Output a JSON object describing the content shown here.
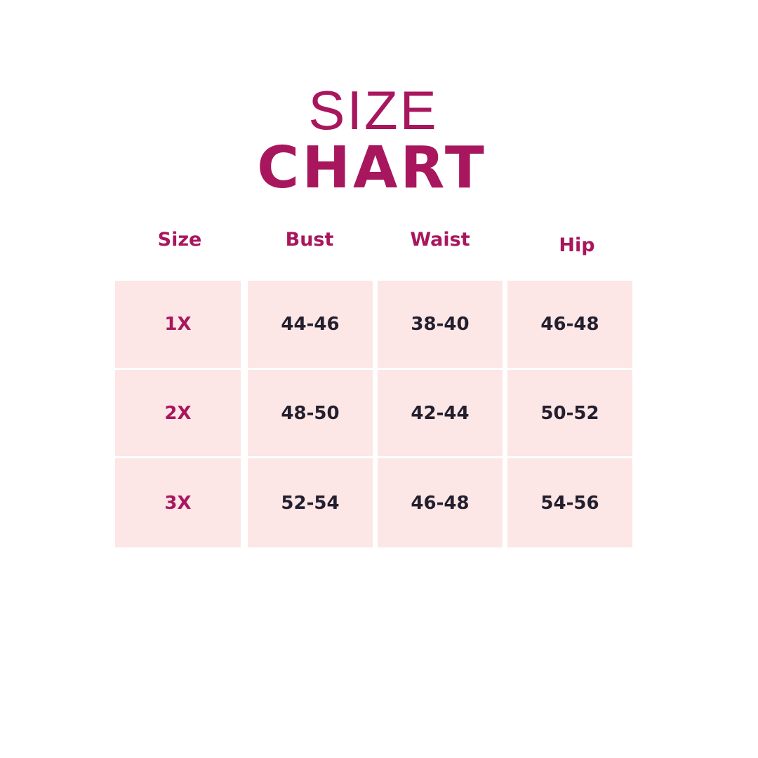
{
  "title": {
    "line1": "SIZE",
    "line2": "CHART"
  },
  "colors": {
    "accent": "#a8175e",
    "cell_background": "#fce6e6",
    "value_text": "#231f2e"
  },
  "table": {
    "headers": [
      "Size",
      "Bust",
      "Waist",
      "Hip"
    ],
    "rows": [
      [
        "1X",
        "44-46",
        "38-40",
        "46-48"
      ],
      [
        "2X",
        "48-50",
        "42-44",
        "50-52"
      ],
      [
        "3X",
        "52-54",
        "46-48",
        "54-56"
      ]
    ]
  }
}
